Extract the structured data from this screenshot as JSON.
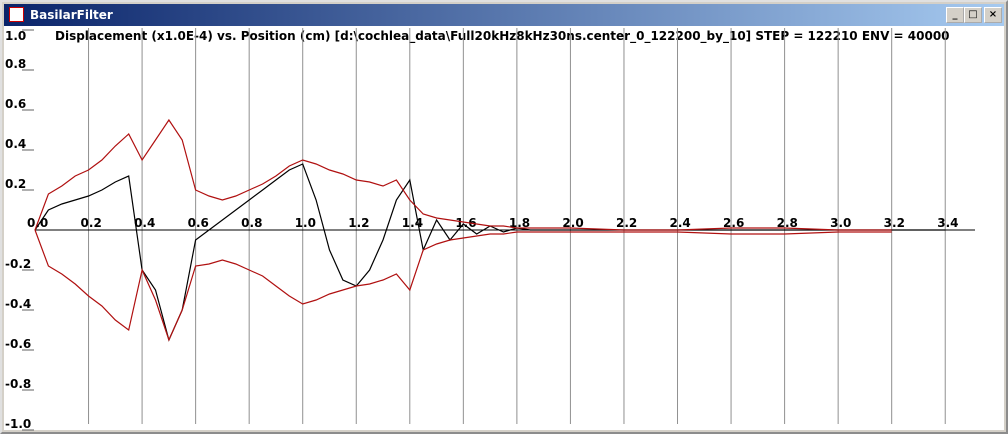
{
  "window": {
    "title": "BasilarFilter"
  },
  "chart_data": {
    "type": "line",
    "title": "Displacement (x1.0E-4) vs. Position (cm) [d:\\cochlea_data\\Full20kHz8kHz30ns.center_0_122200_by_10] STEP = 122210 ENV = 40000",
    "x": [
      0,
      0.05,
      0.1,
      0.15,
      0.2,
      0.25,
      0.3,
      0.35,
      0.4,
      0.45,
      0.5,
      0.55,
      0.6,
      0.65,
      0.7,
      0.75,
      0.8,
      0.85,
      0.9,
      0.95,
      1.0,
      1.05,
      1.1,
      1.15,
      1.2,
      1.25,
      1.3,
      1.35,
      1.4,
      1.45,
      1.5,
      1.55,
      1.6,
      1.65,
      1.7,
      1.75,
      1.8,
      1.85,
      1.9,
      1.95,
      2.0,
      2.2,
      2.4,
      2.6,
      2.8,
      3.0,
      3.2,
      3.4
    ],
    "series": [
      {
        "color": "#000000",
        "values": [
          0,
          0.1,
          0.13,
          0.15,
          0.17,
          0.2,
          0.24,
          0.27,
          -0.2,
          -0.3,
          -0.55,
          -0.4,
          -0.05,
          0,
          0.05,
          0.1,
          0.15,
          0.2,
          0.25,
          0.3,
          0.33,
          0.15,
          -0.1,
          -0.25,
          -0.28,
          -0.2,
          -0.05,
          0.15,
          0.25,
          -0.1,
          0.05,
          -0.05,
          0.03,
          -0.02,
          0.02,
          -0.01,
          0.01,
          0,
          0,
          0,
          0,
          0,
          0,
          0,
          0,
          0,
          0,
          0
        ]
      },
      {
        "color": "#b01010",
        "values": [
          0,
          0.18,
          0.22,
          0.27,
          0.3,
          0.35,
          0.42,
          0.48,
          0.35,
          0.45,
          0.55,
          0.45,
          0.2,
          0.17,
          0.15,
          0.17,
          0.2,
          0.23,
          0.27,
          0.32,
          0.35,
          0.33,
          0.3,
          0.28,
          0.25,
          0.24,
          0.22,
          0.25,
          0.15,
          0.08,
          0.06,
          0.05,
          0.04,
          0.03,
          0.02,
          0.02,
          0.01,
          0.01,
          0.01,
          0.01,
          0.01,
          0,
          0,
          0.01,
          0.01,
          0,
          0,
          null
        ]
      },
      {
        "color": "#b01010",
        "values": [
          0,
          -0.18,
          -0.22,
          -0.27,
          -0.33,
          -0.38,
          -0.45,
          -0.5,
          -0.2,
          -0.35,
          -0.55,
          -0.4,
          -0.18,
          -0.17,
          -0.15,
          -0.17,
          -0.2,
          -0.23,
          -0.28,
          -0.33,
          -0.37,
          -0.35,
          -0.32,
          -0.3,
          -0.28,
          -0.27,
          -0.25,
          -0.22,
          -0.3,
          -0.1,
          -0.07,
          -0.05,
          -0.04,
          -0.03,
          -0.02,
          -0.02,
          -0.01,
          -0.01,
          -0.01,
          -0.01,
          -0.01,
          -0.01,
          -0.01,
          -0.02,
          -0.02,
          -0.01,
          -0.01,
          null
        ]
      }
    ],
    "xlim": [
      0,
      3.5
    ],
    "xticks": [
      {
        "value": 0,
        "label": "0.0"
      },
      0.2,
      0.4,
      0.6,
      0.8,
      {
        "value": 1,
        "label": "1.0"
      },
      1.2,
      1.4,
      1.6,
      1.8,
      {
        "value": 2,
        "label": "2.0"
      },
      2.2,
      2.4,
      2.6,
      2.8,
      {
        "value": 3,
        "label": "3.0"
      },
      3.2,
      3.4
    ],
    "ylim": [
      -1,
      1
    ],
    "yticks": [
      {
        "value": 1,
        "label": "1.0"
      },
      0.8,
      0.6,
      0.4,
      0.2,
      -0.2,
      -0.4,
      -0.6,
      -0.8,
      {
        "value": -1,
        "label": "-1.0"
      }
    ],
    "grid": true
  }
}
